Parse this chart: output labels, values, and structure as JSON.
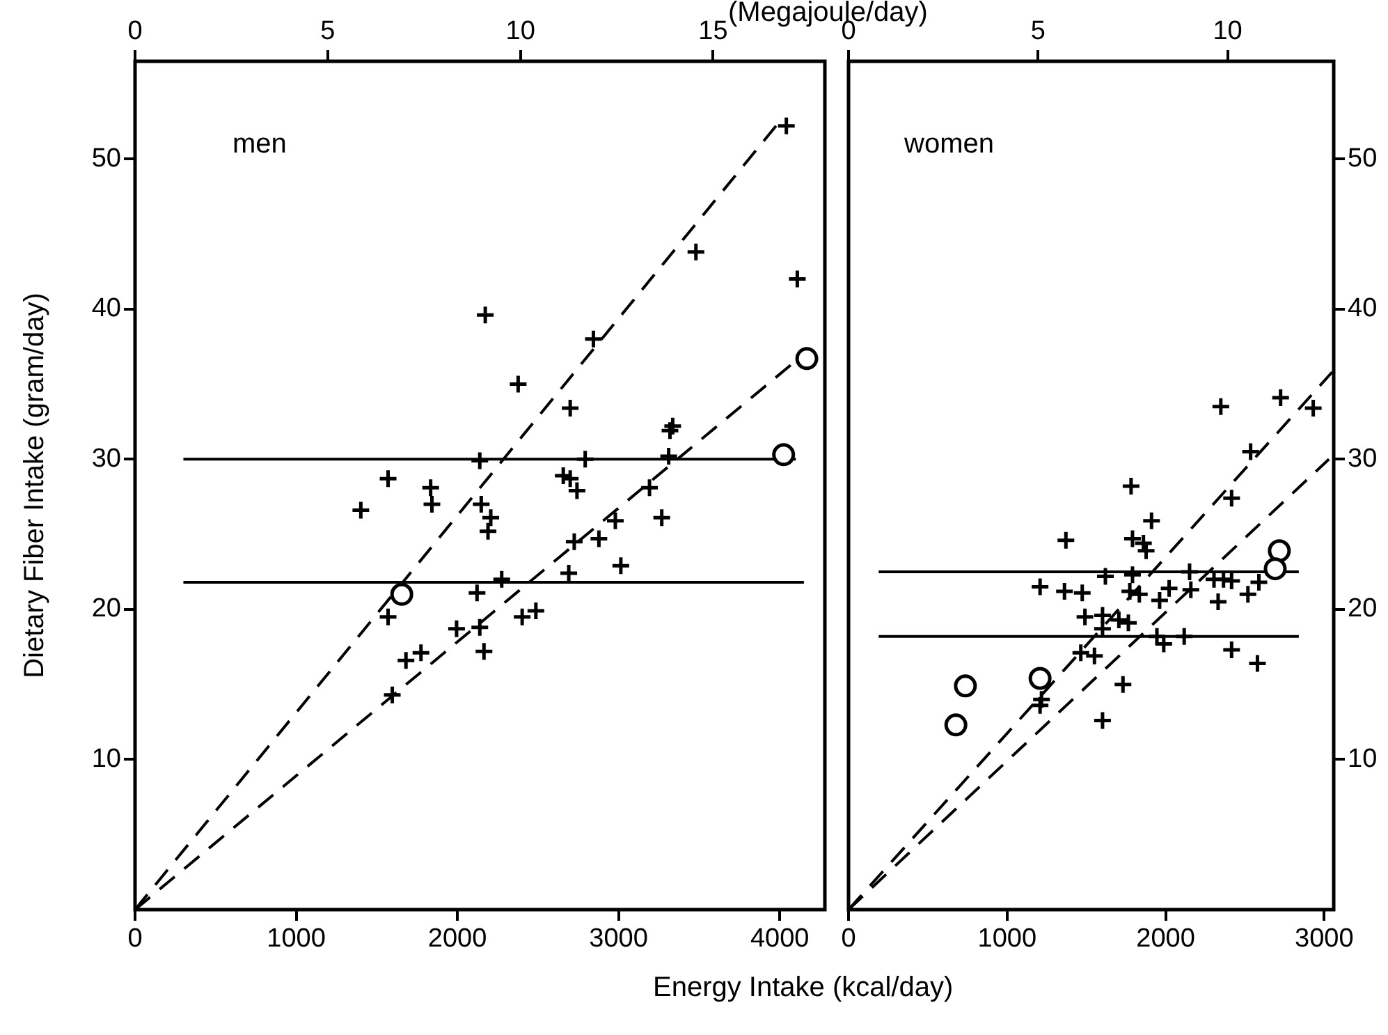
{
  "chart_data": [
    {
      "type": "scatter",
      "xlabel": "Energy Intake (kcal/day)",
      "x2label": "(Megajoule/day)",
      "ylabel": "Dietary Fiber Intake (gram/day)",
      "annotations": [
        "men"
      ],
      "xlim": [
        0,
        4280
      ],
      "xticks": [
        0,
        1000,
        2000,
        3000,
        4000
      ],
      "x2lim": [
        0,
        17.9
      ],
      "x2ticks": [
        0,
        5,
        10,
        15
      ],
      "ylim": [
        0,
        56.5
      ],
      "yticks": [
        10,
        20,
        30,
        40,
        50
      ],
      "grid": false,
      "legend": false,
      "series": [
        {
          "type": "scatter",
          "marker": "cross",
          "color": "#000000",
          "x": [
            4041,
            3480,
            4109,
            2173,
            2844,
            2377,
            2700,
            3336,
            3319,
            2139,
            2793,
            3311,
            1570,
            1401,
            1834,
            1842,
            2657,
            2700,
            2742,
            3192,
            2148,
            2207,
            2190,
            3268,
            2980,
            2878,
            2725,
            3014,
            2691,
            2275,
            2122,
            1570,
            1995,
            2139,
            2402,
            2487,
            2165,
            1681,
            1774,
            1596
          ],
          "values": [
            52.2,
            43.8,
            42.0,
            39.6,
            38.0,
            35.0,
            33.4,
            32.2,
            31.9,
            29.9,
            30.0,
            30.2,
            28.7,
            26.6,
            28.1,
            27.0,
            28.9,
            28.7,
            27.9,
            28.1,
            27.0,
            26.1,
            25.2,
            26.1,
            25.9,
            24.7,
            24.5,
            22.9,
            22.4,
            22.0,
            21.1,
            19.5,
            18.7,
            18.8,
            19.5,
            19.9,
            17.2,
            16.6,
            17.1,
            14.3
          ]
        },
        {
          "type": "scatter",
          "marker": "circle",
          "color": "#000000",
          "x": [
            4168,
            4024,
            1655
          ],
          "values": [
            36.7,
            30.3,
            21.0
          ]
        },
        {
          "type": "line",
          "marker": "none",
          "line_style": "dashed",
          "color": "#000000",
          "x": [
            0,
            4000
          ],
          "values": [
            0,
            52.5
          ]
        },
        {
          "type": "line",
          "marker": "none",
          "line_style": "dashed",
          "color": "#000000",
          "x": [
            0,
            4150
          ],
          "values": [
            0,
            37
          ]
        },
        {
          "type": "line",
          "marker": "none",
          "line_style": "solid",
          "color": "#000000",
          "x": [
            300,
            4100
          ],
          "values": [
            30,
            30
          ]
        },
        {
          "type": "line",
          "marker": "none",
          "line_style": "solid",
          "color": "#000000",
          "x": [
            300,
            4150
          ],
          "values": [
            21.8,
            21.8
          ]
        }
      ]
    },
    {
      "type": "scatter",
      "annotations": [
        "women"
      ],
      "xlim": [
        0,
        3060
      ],
      "xticks": [
        0,
        1000,
        2000,
        3000
      ],
      "x2lim": [
        0,
        12.8
      ],
      "x2ticks": [
        0,
        5,
        10
      ],
      "y2lim": [
        0,
        56.5
      ],
      "y2ticks": [
        10,
        20,
        30,
        40,
        50
      ],
      "grid": false,
      "legend": false,
      "series": [
        {
          "type": "scatter",
          "axis": "y2",
          "marker": "cross",
          "color": "#000000",
          "x": [
            2348,
            2725,
            2931,
            2536,
            1782,
            2416,
            1911,
            1371,
            1791,
            1860,
            1877,
            2151,
            2305,
            2365,
            2416,
            1620,
            1791,
            1208,
            1362,
            1474,
            1774,
            1834,
            2022,
            2159,
            2519,
            2588,
            1962,
            2331,
            1491,
            1602,
            1705,
            1765,
            1602,
            1945,
            2117,
            1988,
            2416,
            2579,
            1465,
            1551,
            1731,
            1217,
            1208,
            1602
          ],
          "values": [
            33.5,
            34.1,
            33.4,
            30.5,
            28.2,
            27.4,
            25.9,
            24.6,
            24.7,
            24.4,
            23.9,
            22.5,
            22.0,
            22.0,
            21.9,
            22.2,
            22.3,
            21.5,
            21.2,
            21.1,
            21.2,
            21.0,
            21.4,
            21.3,
            21.0,
            21.8,
            20.6,
            20.5,
            19.5,
            19.6,
            19.3,
            19.1,
            18.7,
            18.2,
            18.2,
            17.7,
            17.3,
            16.4,
            17.1,
            16.9,
            15.0,
            14.0,
            13.6,
            12.6
          ]
        },
        {
          "type": "scatter",
          "axis": "y2",
          "marker": "circle",
          "color": "#000000",
          "x": [
            2717,
            2691,
            1208,
            737,
            677
          ],
          "values": [
            23.9,
            22.7,
            15.4,
            14.9,
            12.3
          ]
        },
        {
          "type": "line",
          "axis": "y2",
          "marker": "none",
          "line_style": "dashed",
          "color": "#000000",
          "x": [
            0,
            3050
          ],
          "values": [
            0,
            35.8
          ]
        },
        {
          "type": "line",
          "axis": "y2",
          "marker": "none",
          "line_style": "dashed",
          "color": "#000000",
          "x": [
            0,
            3030
          ],
          "values": [
            0,
            30
          ]
        },
        {
          "type": "line",
          "axis": "y2",
          "marker": "none",
          "line_style": "solid",
          "color": "#000000",
          "x": [
            190,
            2840
          ],
          "values": [
            22.5,
            22.5
          ]
        },
        {
          "type": "line",
          "axis": "y2",
          "marker": "none",
          "line_style": "solid",
          "color": "#000000",
          "x": [
            190,
            2840
          ],
          "values": [
            18.2,
            18.2
          ]
        }
      ]
    }
  ]
}
